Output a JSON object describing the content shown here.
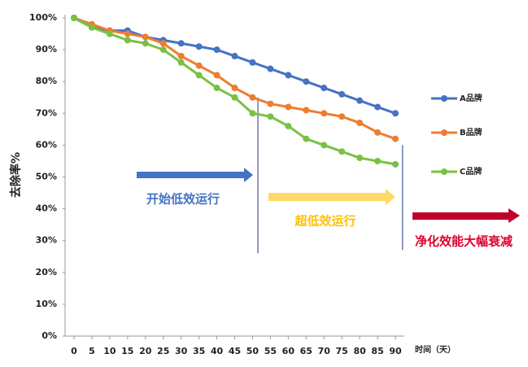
{
  "chart_data": {
    "type": "line",
    "y_label": "去除率%",
    "x_label": "时间（天）",
    "x": [
      0,
      5,
      10,
      15,
      20,
      25,
      30,
      35,
      40,
      45,
      50,
      55,
      60,
      65,
      70,
      75,
      80,
      85,
      90
    ],
    "xlim": [
      -2.5,
      92.5
    ],
    "ylim": [
      0,
      100
    ],
    "yticks": [
      {
        "value": 0,
        "label": "0%"
      },
      {
        "value": 10,
        "label": "10%"
      },
      {
        "value": 20,
        "label": "20%"
      },
      {
        "value": 30,
        "label": "30%"
      },
      {
        "value": 40,
        "label": "40%"
      },
      {
        "value": 50,
        "label": "50%"
      },
      {
        "value": 60,
        "label": "60%"
      },
      {
        "value": 70,
        "label": "70%"
      },
      {
        "value": 80,
        "label": "80%"
      },
      {
        "value": 90,
        "label": "90%"
      },
      {
        "value": 100,
        "label": "100%"
      }
    ],
    "series": [
      {
        "name": "A品牌",
        "color": "#4472c4",
        "values": [
          100,
          97,
          96,
          96,
          94,
          93,
          92,
          91,
          90,
          88,
          86,
          84,
          82,
          80,
          78,
          76,
          74,
          72,
          70
        ]
      },
      {
        "name": "B品牌",
        "color": "#ed7d31",
        "values": [
          100,
          98,
          96,
          95,
          94,
          92,
          88,
          85,
          82,
          78,
          75,
          73,
          72,
          71,
          70,
          69,
          67,
          64,
          62
        ]
      },
      {
        "name": "C品牌",
        "color": "#7ac143",
        "values": [
          100,
          97,
          95,
          93,
          92,
          90,
          86,
          82,
          78,
          75,
          70,
          69,
          66,
          62,
          60,
          58,
          56,
          55,
          54
        ]
      }
    ],
    "vlines": [
      {
        "x": 51.5,
        "y": [
          26,
          75
        ]
      },
      {
        "x": 92,
        "y": [
          27,
          60
        ]
      }
    ],
    "annotations": [
      "开始低效运行",
      "超低效运行",
      "净化效能大幅衰减"
    ]
  }
}
